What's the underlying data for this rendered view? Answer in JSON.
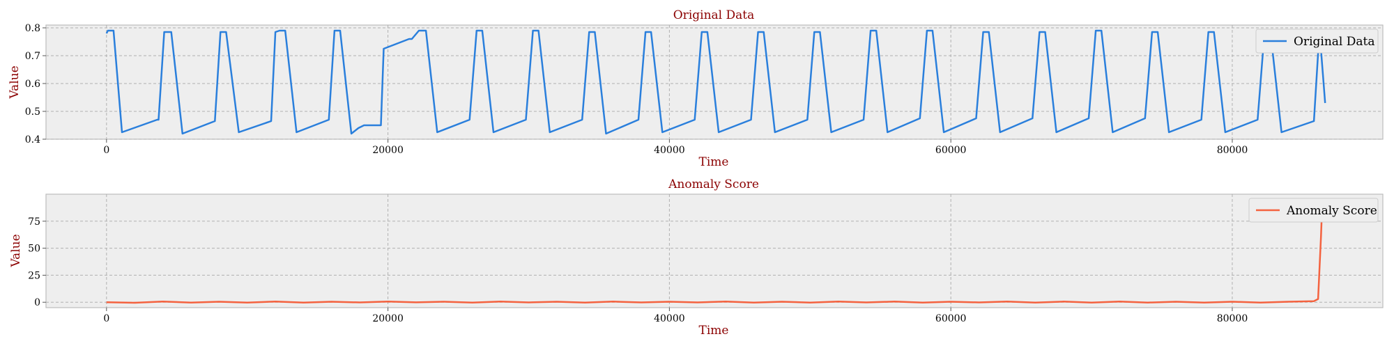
{
  "chart_data": [
    {
      "type": "line",
      "title": "Original Data",
      "xlabel": "Time",
      "ylabel": "Value",
      "xlim": [
        -4300,
        90700
      ],
      "ylim": [
        0.4,
        0.81
      ],
      "xticks": [
        0,
        20000,
        40000,
        60000,
        80000
      ],
      "yticks": [
        0.4,
        0.5,
        0.6,
        0.7,
        0.8
      ],
      "legend_position": "top-right",
      "grid": true,
      "series": [
        {
          "name": "Original Data",
          "color": "#2a7fdc",
          "x": [
            0,
            100,
            400,
            500,
            1100,
            3600,
            3700,
            4100,
            4600,
            5400,
            7700,
            8100,
            8500,
            9400,
            11700,
            12000,
            12300,
            12700,
            13500,
            15800,
            16200,
            16600,
            17400,
            17900,
            18300,
            19500,
            19700,
            21500,
            21700,
            22200,
            22400,
            22700,
            23500,
            25800,
            26300,
            26700,
            27500,
            29800,
            30300,
            30700,
            31500,
            33800,
            34300,
            34700,
            35500,
            37800,
            38300,
            38700,
            39500,
            41800,
            42300,
            42700,
            43500,
            45800,
            46300,
            46700,
            47500,
            49800,
            50300,
            50700,
            51500,
            53800,
            54300,
            54700,
            55500,
            57800,
            58300,
            58700,
            59500,
            61800,
            62300,
            62700,
            63500,
            65800,
            66300,
            66700,
            67500,
            69800,
            70300,
            70700,
            71500,
            73800,
            74300,
            74700,
            75500,
            77800,
            78300,
            78700,
            79500,
            81800,
            82300,
            82700,
            83500,
            85800,
            86200,
            86600
          ],
          "y": [
            0.78,
            0.79,
            0.79,
            0.79,
            0.425,
            0.47,
            0.47,
            0.785,
            0.785,
            0.42,
            0.465,
            0.785,
            0.785,
            0.425,
            0.465,
            0.785,
            0.79,
            0.79,
            0.425,
            0.47,
            0.79,
            0.79,
            0.42,
            0.44,
            0.45,
            0.45,
            0.725,
            0.76,
            0.76,
            0.79,
            0.79,
            0.79,
            0.425,
            0.47,
            0.79,
            0.79,
            0.425,
            0.47,
            0.79,
            0.79,
            0.425,
            0.47,
            0.785,
            0.785,
            0.42,
            0.47,
            0.785,
            0.785,
            0.425,
            0.47,
            0.785,
            0.785,
            0.425,
            0.47,
            0.785,
            0.785,
            0.425,
            0.47,
            0.785,
            0.785,
            0.425,
            0.47,
            0.79,
            0.79,
            0.425,
            0.475,
            0.79,
            0.79,
            0.425,
            0.475,
            0.785,
            0.785,
            0.425,
            0.475,
            0.785,
            0.785,
            0.425,
            0.475,
            0.79,
            0.79,
            0.425,
            0.475,
            0.785,
            0.785,
            0.425,
            0.47,
            0.785,
            0.785,
            0.425,
            0.47,
            0.79,
            0.79,
            0.425,
            0.465,
            0.79,
            0.53
          ]
        }
      ]
    },
    {
      "type": "line",
      "title": "Anomaly Score",
      "xlabel": "Time",
      "ylabel": "Value",
      "xlim": [
        -4300,
        90700
      ],
      "ylim": [
        -5,
        100
      ],
      "xticks": [
        0,
        20000,
        40000,
        60000,
        80000
      ],
      "yticks": [
        0,
        25,
        50,
        75
      ],
      "legend_position": "top-right",
      "grid": true,
      "series": [
        {
          "name": "Anomaly Score",
          "color": "#f4623f",
          "x": [
            0,
            2000,
            4000,
            6000,
            8000,
            10000,
            12000,
            14000,
            16000,
            18000,
            20000,
            22000,
            24000,
            26000,
            28000,
            30000,
            32000,
            34000,
            36000,
            38000,
            40000,
            42000,
            44000,
            46000,
            48000,
            50000,
            52000,
            54000,
            56000,
            58000,
            60000,
            62000,
            64000,
            66000,
            68000,
            70000,
            72000,
            74000,
            76000,
            78000,
            80000,
            82000,
            84000,
            85800,
            86100,
            86300,
            86400
          ],
          "y": [
            0,
            -0.5,
            0.6,
            -0.3,
            0.5,
            -0.3,
            0.6,
            -0.3,
            0.5,
            -0.2,
            0.6,
            -0.1,
            0.5,
            -0.3,
            0.6,
            -0.2,
            0.5,
            -0.3,
            0.6,
            -0.2,
            0.5,
            -0.2,
            0.6,
            -0.3,
            0.5,
            -0.3,
            0.6,
            -0.2,
            0.6,
            -0.3,
            0.5,
            -0.2,
            0.6,
            -0.3,
            0.6,
            -0.3,
            0.6,
            -0.3,
            0.5,
            -0.3,
            0.5,
            -0.3,
            0.5,
            1,
            3,
            60,
            94
          ]
        }
      ]
    }
  ]
}
